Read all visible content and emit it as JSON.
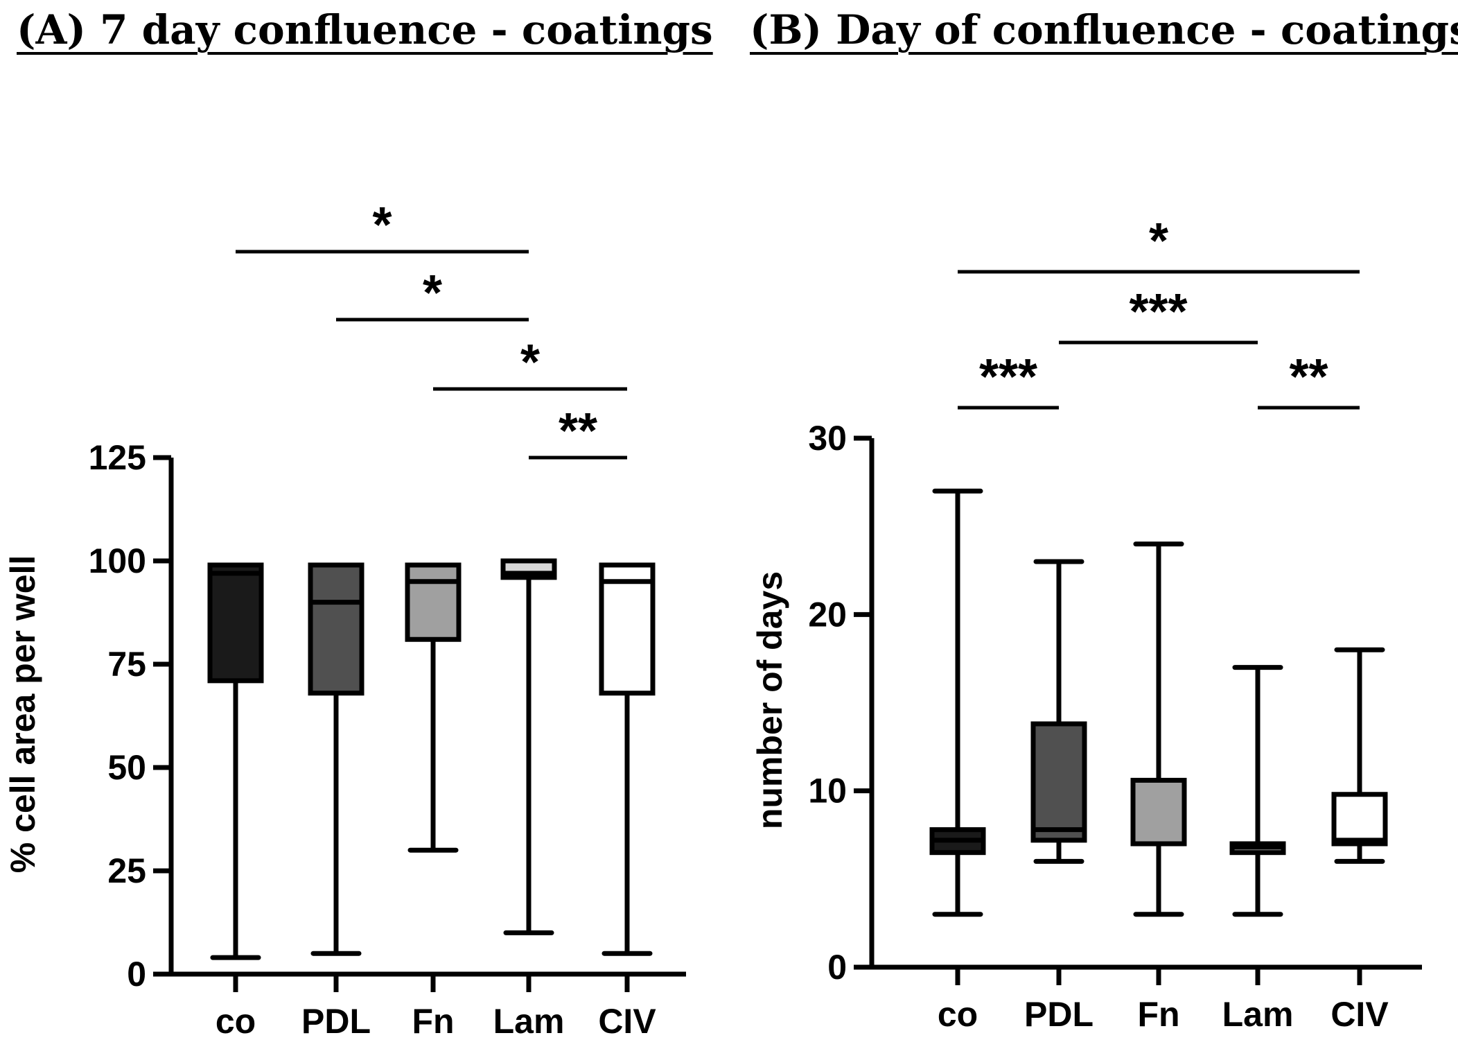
{
  "panels": {
    "a_title": "(A) 7 day confluence - coatings",
    "b_title": "(B) Day of confluence - coatings"
  },
  "chart_data": [
    {
      "type": "box",
      "title": "(A) 7 day confluence - coatings",
      "xlabel": "",
      "ylabel": "% cell area per well",
      "ylim": [
        0,
        125
      ],
      "yticks": [
        0,
        25,
        50,
        75,
        100,
        125
      ],
      "categories": [
        "co",
        "PDL",
        "Fn",
        "Lam",
        "CIV"
      ],
      "fill_colors": [
        "#1a1a1a",
        "#505050",
        "#a0a0a0",
        "#d8d8d8",
        "#ffffff"
      ],
      "boxes": [
        {
          "category": "co",
          "min": 4,
          "q1": 71,
          "median": 97,
          "q3": 99,
          "max": 99
        },
        {
          "category": "PDL",
          "min": 5,
          "q1": 68,
          "median": 90,
          "q3": 99,
          "max": 99
        },
        {
          "category": "Fn",
          "min": 30,
          "q1": 81,
          "median": 95,
          "q3": 99,
          "max": 99
        },
        {
          "category": "Lam",
          "min": 10,
          "q1": 96,
          "median": 97,
          "q3": 100,
          "max": 100
        },
        {
          "category": "CIV",
          "min": 5,
          "q1": 68,
          "median": 95,
          "q3": 99,
          "max": 99
        }
      ],
      "significance": [
        {
          "from": "co",
          "to": "Lam",
          "label": "*"
        },
        {
          "from": "PDL",
          "to": "Lam",
          "label": "*"
        },
        {
          "from": "Fn",
          "to": "CIV",
          "label": "*"
        },
        {
          "from": "Lam",
          "to": "CIV",
          "label": "**"
        }
      ]
    },
    {
      "type": "box",
      "title": "(B) Day of confluence - coatings",
      "xlabel": "",
      "ylabel": "number of days",
      "ylim": [
        0,
        30
      ],
      "yticks": [
        0,
        10,
        20,
        30
      ],
      "categories": [
        "co",
        "PDL",
        "Fn",
        "Lam",
        "CIV"
      ],
      "fill_colors": [
        "#1a1a1a",
        "#505050",
        "#a0a0a0",
        "#d8d8d8",
        "#ffffff"
      ],
      "boxes": [
        {
          "category": "co",
          "min": 3,
          "q1": 6.5,
          "median": 7.2,
          "q3": 7.8,
          "max": 27
        },
        {
          "category": "PDL",
          "min": 6,
          "q1": 7.2,
          "median": 7.8,
          "q3": 13.8,
          "max": 23
        },
        {
          "category": "Fn",
          "min": 3,
          "q1": 7,
          "median": 7,
          "q3": 10.6,
          "max": 24
        },
        {
          "category": "Lam",
          "min": 3,
          "q1": 6.5,
          "median": 6.8,
          "q3": 7,
          "max": 17
        },
        {
          "category": "CIV",
          "min": 6,
          "q1": 7,
          "median": 7.2,
          "q3": 9.8,
          "max": 18
        }
      ],
      "significance": [
        {
          "from": "co",
          "to": "CIV",
          "label": "*"
        },
        {
          "from": "PDL",
          "to": "Lam",
          "label": "***"
        },
        {
          "from": "co",
          "to": "PDL",
          "label": "***"
        },
        {
          "from": "Lam",
          "to": "CIV",
          "label": "**"
        }
      ]
    }
  ]
}
